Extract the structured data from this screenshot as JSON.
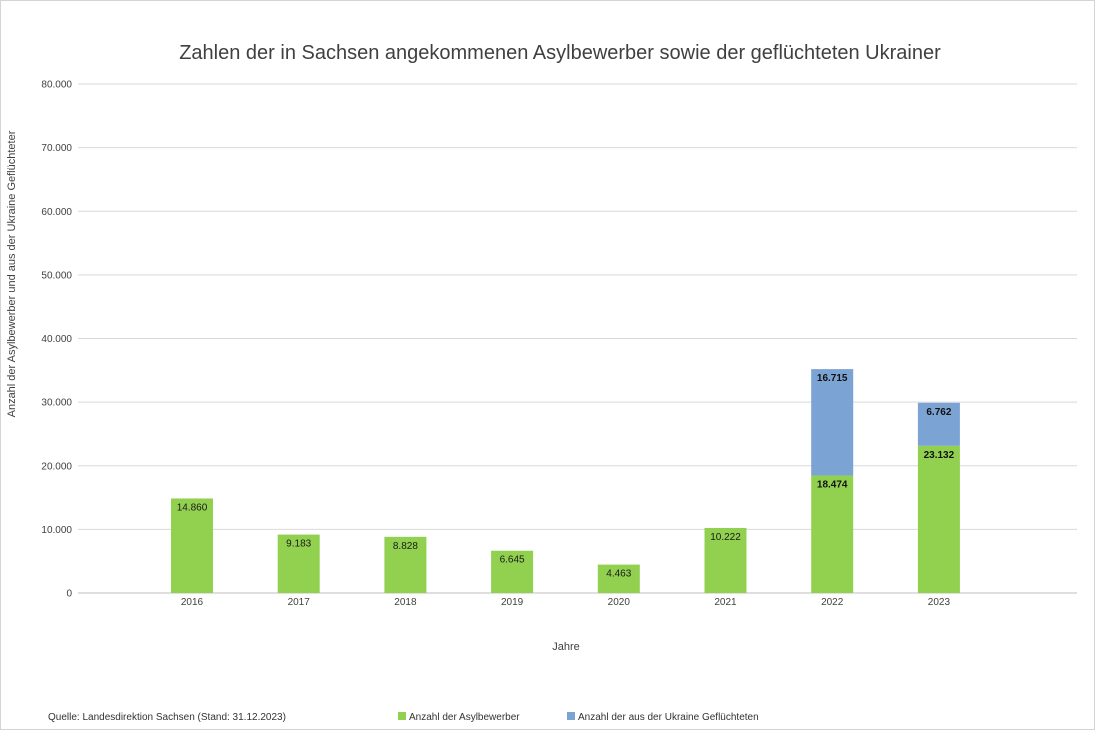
{
  "chart_data": {
    "type": "bar",
    "stacked": true,
    "title": "Zahlen der in Sachsen angekommenen Asylbewerber sowie der geflüchteten Ukrainer",
    "xlabel": "Jahre",
    "ylabel": "Anzahl der Asylbewerber und aus der Ukraine Geflüchteter",
    "categories": [
      "2016",
      "2017",
      "2018",
      "2019",
      "2020",
      "2021",
      "2022",
      "2023"
    ],
    "ylim": [
      0,
      80000
    ],
    "yticks": [
      0,
      10000,
      20000,
      30000,
      40000,
      50000,
      60000,
      70000,
      80000
    ],
    "ytick_labels": [
      "0",
      "10.000",
      "20.000",
      "30.000",
      "40.000",
      "50.000",
      "60.000",
      "70.000",
      "80.000"
    ],
    "grid": true,
    "legend_position": "bottom",
    "series": [
      {
        "name": "Anzahl der Asylbewerber",
        "color": "#92d050",
        "values": [
          14860,
          9183,
          8828,
          6645,
          4463,
          10222,
          18474,
          23132
        ],
        "labels": [
          "14.860",
          "9.183",
          "8.828",
          "6.645",
          "4.463",
          "10.222",
          "18.474",
          "23.132"
        ]
      },
      {
        "name": "Anzahl der aus der Ukraine Geflüchteten",
        "color": "#7ba3d3",
        "values": [
          null,
          null,
          null,
          null,
          null,
          null,
          16715,
          6762
        ],
        "labels": [
          "",
          "",
          "",
          "",
          "",
          "",
          "16.715",
          "6.762"
        ]
      }
    ],
    "source_note": "Quelle: Landesdirektion Sachsen (Stand: 31.12.2023)"
  }
}
